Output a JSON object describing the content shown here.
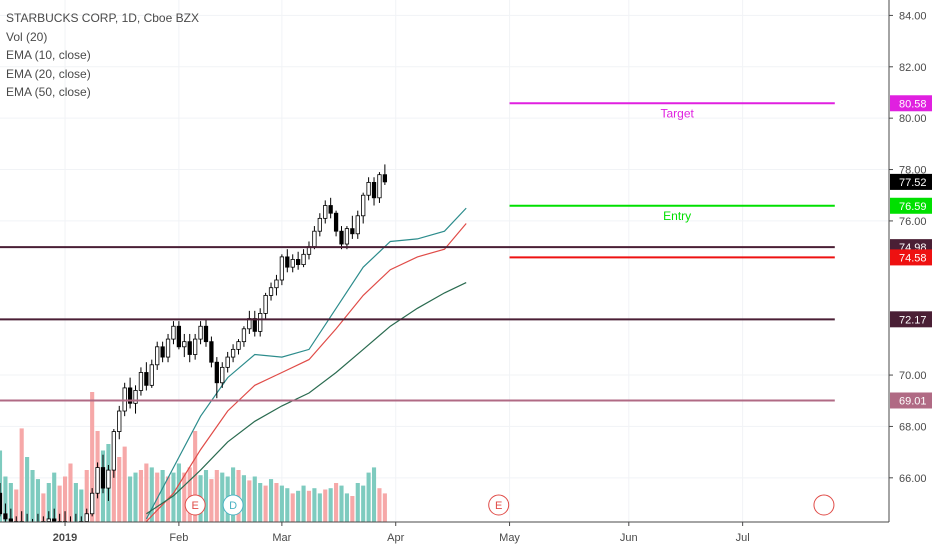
{
  "legend": {
    "title": "STARBUCKS CORP, 1D, Cboe BZX",
    "studies": [
      "Vol (20)",
      "EMA (10, close)",
      "EMA (20, close)",
      "EMA (50, close)"
    ]
  },
  "colors": {
    "up": "#ffffff",
    "down": "#000000",
    "wick": "#000000",
    "vol_up": "#7ecbbf",
    "vol_down": "#f6a8a8",
    "ema10": "#2c8c8c",
    "ema20": "#e04c48",
    "ema50": "#2a6b50",
    "level": "#4a1f35",
    "level_light": "#b06a84",
    "target": "#e020e0",
    "entry": "#00e000",
    "stop": "#ee1111",
    "axis_text": "#4a4a4a",
    "grid": "#f1f3f6",
    "earnings": "#e04c48",
    "dividend": "#4bb3c3"
  },
  "chart_data": {
    "type": "candlestick",
    "y_axis": {
      "range": [
        64.28,
        84.6
      ],
      "ticks": [
        "84.00",
        "82.00",
        "80.00",
        "78.00",
        "76.00",
        "70.00",
        "68.00",
        "66.00"
      ]
    },
    "x_axis": {
      "range": [
        -12,
        152
      ],
      "ticks": [
        {
          "label": "2019",
          "x": 0
        },
        {
          "label": "Feb",
          "x": 21
        },
        {
          "label": "Mar",
          "x": 40
        },
        {
          "label": "Apr",
          "x": 61
        },
        {
          "label": "May",
          "x": 82
        },
        {
          "label": "Jun",
          "x": 104
        },
        {
          "label": "Jul",
          "x": 125
        }
      ]
    },
    "candles_start_x": -12,
    "candles": [
      [
        65.4,
        65.8,
        64.5,
        64.6
      ],
      [
        64.6,
        65.0,
        64.2,
        64.4
      ],
      [
        64.4,
        64.8,
        63.9,
        64.1
      ],
      [
        64.1,
        64.5,
        63.8,
        64.3
      ],
      [
        64.3,
        64.7,
        64.0,
        64.2
      ],
      [
        64.2,
        64.6,
        63.9,
        64.0
      ],
      [
        64.0,
        64.4,
        63.8,
        64.2
      ],
      [
        64.2,
        64.6,
        64.0,
        64.1
      ],
      [
        64.1,
        64.5,
        63.8,
        64.3
      ],
      [
        64.3,
        64.7,
        64.0,
        64.4
      ],
      [
        64.4,
        64.8,
        64.1,
        64.2
      ],
      [
        64.2,
        64.6,
        63.9,
        64.3
      ],
      [
        64.3,
        64.7,
        64.0,
        64.1
      ],
      [
        64.1,
        64.5,
        63.8,
        64.2
      ],
      [
        64.2,
        64.6,
        63.9,
        64.0
      ],
      [
        64.0,
        64.5,
        63.9,
        64.3
      ],
      [
        64.3,
        64.8,
        64.2,
        64.6
      ],
      [
        64.6,
        65.6,
        64.5,
        65.4
      ],
      [
        65.4,
        66.6,
        65.2,
        66.4
      ],
      [
        66.4,
        66.9,
        65.4,
        65.6
      ],
      [
        65.6,
        66.5,
        65.1,
        66.3
      ],
      [
        66.3,
        67.9,
        66.0,
        67.8
      ],
      [
        67.8,
        68.8,
        67.5,
        68.6
      ],
      [
        68.6,
        69.7,
        68.4,
        69.5
      ],
      [
        69.5,
        69.9,
        68.7,
        68.9
      ],
      [
        68.9,
        69.6,
        68.5,
        69.4
      ],
      [
        69.4,
        70.3,
        69.2,
        70.1
      ],
      [
        70.1,
        70.5,
        69.4,
        69.6
      ],
      [
        69.6,
        70.6,
        69.5,
        70.4
      ],
      [
        70.4,
        71.3,
        70.2,
        71.1
      ],
      [
        71.1,
        71.3,
        70.5,
        70.7
      ],
      [
        70.7,
        71.6,
        70.5,
        71.4
      ],
      [
        71.4,
        72.1,
        71.2,
        71.9
      ],
      [
        71.9,
        72.1,
        71.0,
        71.1
      ],
      [
        71.1,
        71.6,
        70.7,
        71.3
      ],
      [
        71.3,
        71.6,
        70.5,
        70.8
      ],
      [
        70.8,
        71.6,
        70.6,
        71.4
      ],
      [
        71.4,
        72.1,
        71.2,
        71.9
      ],
      [
        71.9,
        72.2,
        71.1,
        71.3
      ],
      [
        71.3,
        71.5,
        70.3,
        70.5
      ],
      [
        70.5,
        70.7,
        69.1,
        69.7
      ],
      [
        69.7,
        70.5,
        69.5,
        70.3
      ],
      [
        70.3,
        70.9,
        70.1,
        70.7
      ],
      [
        70.7,
        71.2,
        70.5,
        71.0
      ],
      [
        71.0,
        71.4,
        70.8,
        71.3
      ],
      [
        71.3,
        71.9,
        71.1,
        71.8
      ],
      [
        71.8,
        72.5,
        71.6,
        72.2
      ],
      [
        72.2,
        72.5,
        71.5,
        71.7
      ],
      [
        71.7,
        72.6,
        71.5,
        72.4
      ],
      [
        72.4,
        73.2,
        72.2,
        73.1
      ],
      [
        73.1,
        73.6,
        72.9,
        73.4
      ],
      [
        73.4,
        73.9,
        73.1,
        73.7
      ],
      [
        73.7,
        74.7,
        73.5,
        74.6
      ],
      [
        74.6,
        74.9,
        74.0,
        74.2
      ],
      [
        74.2,
        74.7,
        74.0,
        74.5
      ],
      [
        74.5,
        74.8,
        74.1,
        74.3
      ],
      [
        74.3,
        74.9,
        74.2,
        74.7
      ],
      [
        74.7,
        75.2,
        74.5,
        75.0
      ],
      [
        75.0,
        75.8,
        74.9,
        75.6
      ],
      [
        75.6,
        76.3,
        75.4,
        76.1
      ],
      [
        76.1,
        76.8,
        75.9,
        76.6
      ],
      [
        76.6,
        76.9,
        76.1,
        76.3
      ],
      [
        76.3,
        76.4,
        75.4,
        75.6
      ],
      [
        75.6,
        75.8,
        74.9,
        75.1
      ],
      [
        75.1,
        75.8,
        74.9,
        75.7
      ],
      [
        75.7,
        76.2,
        75.3,
        75.5
      ],
      [
        75.5,
        76.4,
        75.3,
        76.2
      ],
      [
        76.2,
        77.1,
        75.9,
        77.0
      ],
      [
        77.0,
        77.7,
        76.8,
        77.5
      ],
      [
        77.5,
        77.7,
        76.6,
        76.9
      ],
      [
        76.9,
        77.9,
        76.7,
        77.8
      ],
      [
        77.8,
        78.2,
        77.4,
        77.52
      ]
    ],
    "volume_scale": 100,
    "volumes": [
      [
        55,
        1
      ],
      [
        35,
        1
      ],
      [
        30,
        1
      ],
      [
        25,
        0
      ],
      [
        72,
        0
      ],
      [
        50,
        1
      ],
      [
        40,
        1
      ],
      [
        33,
        1
      ],
      [
        22,
        0
      ],
      [
        30,
        1
      ],
      [
        38,
        1
      ],
      [
        28,
        0
      ],
      [
        35,
        0
      ],
      [
        45,
        0
      ],
      [
        30,
        1
      ],
      [
        25,
        1
      ],
      [
        40,
        0
      ],
      [
        100,
        0
      ],
      [
        70,
        0
      ],
      [
        55,
        1
      ],
      [
        60,
        1
      ],
      [
        42,
        0
      ],
      [
        50,
        0
      ],
      [
        58,
        0
      ],
      [
        35,
        1
      ],
      [
        38,
        1
      ],
      [
        40,
        0
      ],
      [
        45,
        0
      ],
      [
        42,
        1
      ],
      [
        38,
        0
      ],
      [
        40,
        1
      ],
      [
        35,
        0
      ],
      [
        38,
        1
      ],
      [
        45,
        1
      ],
      [
        38,
        0
      ],
      [
        42,
        0
      ],
      [
        70,
        0
      ],
      [
        36,
        1
      ],
      [
        40,
        1
      ],
      [
        33,
        0
      ],
      [
        40,
        0
      ],
      [
        38,
        1
      ],
      [
        35,
        1
      ],
      [
        42,
        1
      ],
      [
        40,
        0
      ],
      [
        36,
        1
      ],
      [
        32,
        0
      ],
      [
        35,
        1
      ],
      [
        30,
        1
      ],
      [
        28,
        0
      ],
      [
        33,
        1
      ],
      [
        30,
        0
      ],
      [
        28,
        1
      ],
      [
        26,
        1
      ],
      [
        22,
        0
      ],
      [
        24,
        1
      ],
      [
        28,
        1
      ],
      [
        24,
        0
      ],
      [
        26,
        1
      ],
      [
        22,
        1
      ],
      [
        25,
        0
      ],
      [
        26,
        1
      ],
      [
        30,
        0
      ],
      [
        28,
        1
      ],
      [
        22,
        1
      ],
      [
        20,
        0
      ],
      [
        30,
        1
      ],
      [
        28,
        1
      ],
      [
        38,
        1
      ],
      [
        42,
        1
      ],
      [
        26,
        0
      ],
      [
        22,
        0
      ]
    ],
    "ema": [
      {
        "name": "EMA (10, close)",
        "color_key": "ema10",
        "points": [
          [
            15,
            64.4
          ],
          [
            20,
            66.4
          ],
          [
            25,
            68.4
          ],
          [
            30,
            69.9
          ],
          [
            35,
            70.8
          ],
          [
            40,
            70.7
          ],
          [
            45,
            71.0
          ],
          [
            50,
            72.6
          ],
          [
            55,
            74.2
          ],
          [
            60,
            75.2
          ],
          [
            65,
            75.3
          ],
          [
            70,
            75.6
          ],
          [
            74,
            76.5
          ]
        ]
      },
      {
        "name": "EMA (20, close)",
        "color_key": "ema20",
        "points": [
          [
            15,
            64.3
          ],
          [
            20,
            65.4
          ],
          [
            25,
            67.1
          ],
          [
            30,
            68.6
          ],
          [
            35,
            69.6
          ],
          [
            40,
            70.1
          ],
          [
            45,
            70.6
          ],
          [
            50,
            71.8
          ],
          [
            55,
            73.1
          ],
          [
            60,
            74.1
          ],
          [
            65,
            74.6
          ],
          [
            70,
            74.9
          ],
          [
            74,
            75.9
          ]
        ]
      },
      {
        "name": "EMA (50, close)",
        "color_key": "ema50",
        "points": [
          [
            15,
            64.6
          ],
          [
            20,
            65.3
          ],
          [
            25,
            66.3
          ],
          [
            30,
            67.4
          ],
          [
            35,
            68.2
          ],
          [
            40,
            68.8
          ],
          [
            45,
            69.3
          ],
          [
            50,
            70.1
          ],
          [
            55,
            71.0
          ],
          [
            60,
            71.9
          ],
          [
            65,
            72.6
          ],
          [
            70,
            73.2
          ],
          [
            74,
            73.6
          ]
        ]
      }
    ],
    "levels": [
      {
        "price": 74.98,
        "label": "74.98",
        "color_key": "level",
        "x_start": -12,
        "x_end": 142
      },
      {
        "price": 72.17,
        "label": "72.17",
        "color_key": "level",
        "x_start": -12,
        "x_end": 142
      },
      {
        "price": 69.01,
        "label": "69.01",
        "color_key": "level_light",
        "x_start": -12,
        "x_end": 142
      },
      {
        "price": 80.58,
        "label": "80.58",
        "color_key": "target",
        "x_start": 82,
        "x_end": 142,
        "name": "Target"
      },
      {
        "price": 76.59,
        "label": "76.59",
        "color_key": "entry",
        "x_start": 82,
        "x_end": 142,
        "name": "Entry"
      },
      {
        "price": 74.58,
        "label": "74.58",
        "color_key": "stop",
        "x_start": 82,
        "x_end": 142
      }
    ],
    "last_price": {
      "price": 77.52,
      "label": "77.52"
    },
    "events": [
      {
        "x": 24,
        "label": "E",
        "kind": "earnings"
      },
      {
        "x": 31,
        "label": "D",
        "kind": "dividend"
      },
      {
        "x": 80,
        "label": "E",
        "kind": "earnings"
      },
      {
        "x": 140,
        "label": "",
        "kind": "earnings"
      }
    ]
  }
}
